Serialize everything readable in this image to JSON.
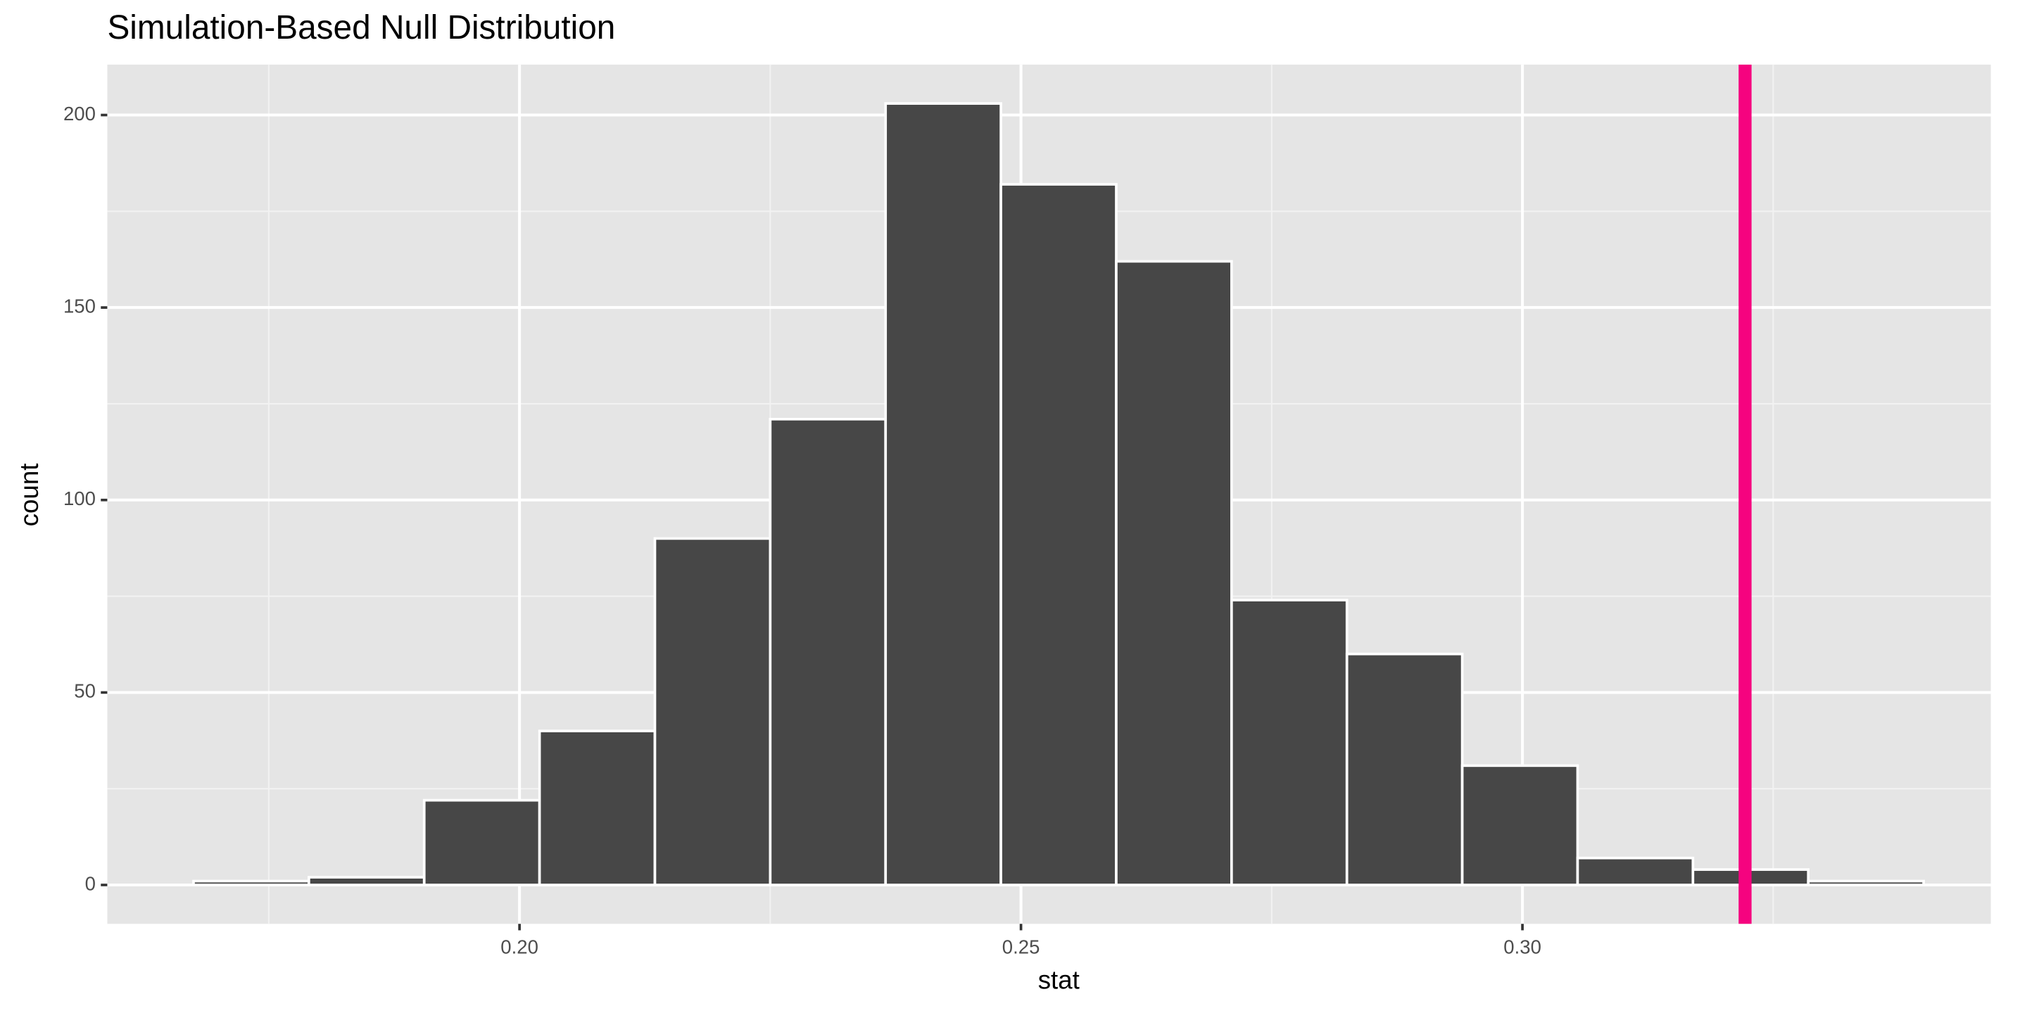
{
  "chart_data": {
    "type": "histogram",
    "title": "Simulation-Based Null Distribution",
    "x_label": "stat",
    "y_label": "count",
    "bins": [
      0.1675,
      0.179,
      0.1905,
      0.202,
      0.2135,
      0.225,
      0.2365,
      0.248,
      0.2595,
      0.271,
      0.2825,
      0.294,
      0.3055,
      0.317,
      0.3285,
      0.34
    ],
    "values": [
      1,
      2,
      22,
      40,
      90,
      121,
      203,
      182,
      162,
      74,
      60,
      31,
      7,
      4,
      1
    ],
    "color": "#474747",
    "xlim": [
      0.1589,
      0.3467
    ],
    "ylim": [
      -10.1,
      213.1
    ],
    "xticks": [
      {
        "value": 0.2,
        "label": "0.20"
      },
      {
        "value": 0.25,
        "label": "0.25"
      },
      {
        "value": 0.3,
        "label": "0.30"
      }
    ],
    "yticks": [
      0,
      50,
      100,
      150,
      200
    ],
    "x_minor_grid": [
      0.175,
      0.225,
      0.275,
      0.325
    ],
    "y_minor_grid": [
      25,
      75,
      125,
      175
    ],
    "grid": true,
    "vline": {
      "value": 0.3222,
      "color": "#f5037f"
    }
  }
}
